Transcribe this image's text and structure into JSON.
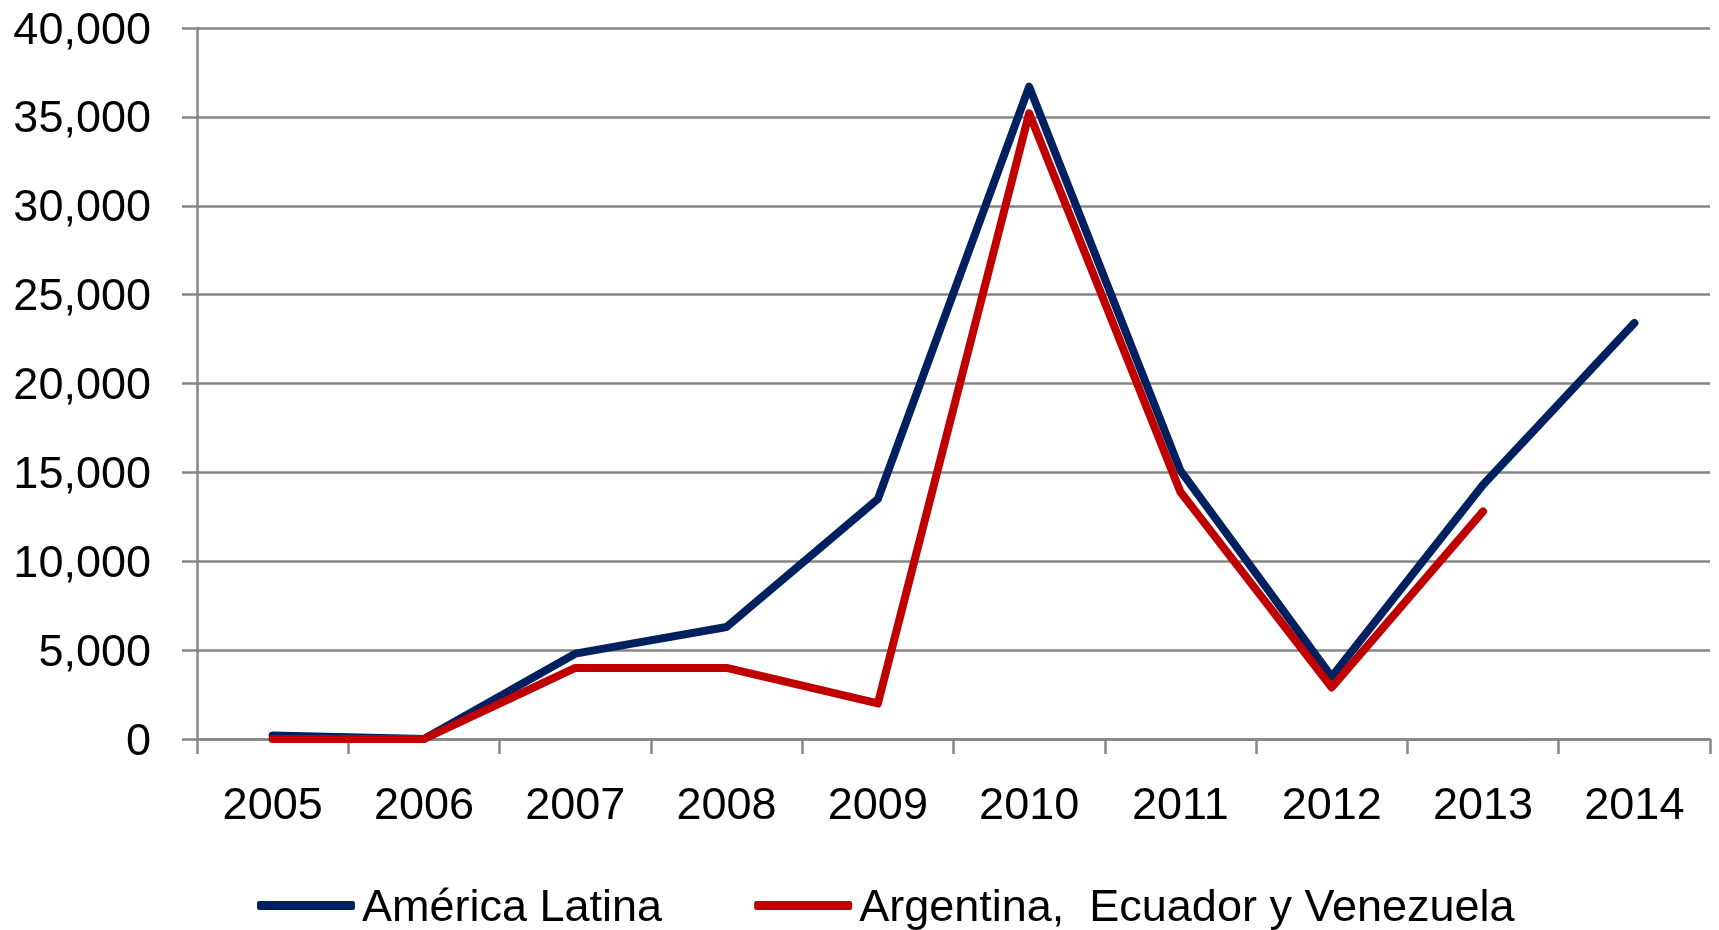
{
  "chart_data": {
    "type": "line",
    "categories": [
      "2005",
      "2006",
      "2007",
      "2008",
      "2009",
      "2010",
      "2011",
      "2012",
      "2013",
      "2014"
    ],
    "series": [
      {
        "name": "América Latina",
        "color": "#002060",
        "values": [
          200,
          0,
          4800,
          6300,
          13500,
          36700,
          15100,
          3500,
          14300,
          23400
        ]
      },
      {
        "name": "Argentina,  Ecuador y Venezuela",
        "color": "#c00000",
        "values": [
          0,
          0,
          4000,
          4000,
          2000,
          35200,
          13900,
          2900,
          12800,
          null
        ]
      }
    ],
    "ylim": [
      0,
      40000
    ],
    "yticks": [
      0,
      {
        "value": 5000,
        "label": "5,000"
      },
      {
        "value": 10000,
        "label": "10,000"
      },
      {
        "value": 15000,
        "label": "15,000"
      },
      {
        "value": 20000,
        "label": "20,000"
      },
      {
        "value": 25000,
        "label": "25,000"
      },
      {
        "value": 30000,
        "label": "30,000"
      },
      {
        "value": 35000,
        "label": "35,000"
      },
      {
        "value": 40000,
        "label": "40,000"
      }
    ],
    "grid": "y",
    "legend": "bottom",
    "marker": "none",
    "line_style": "solid"
  }
}
